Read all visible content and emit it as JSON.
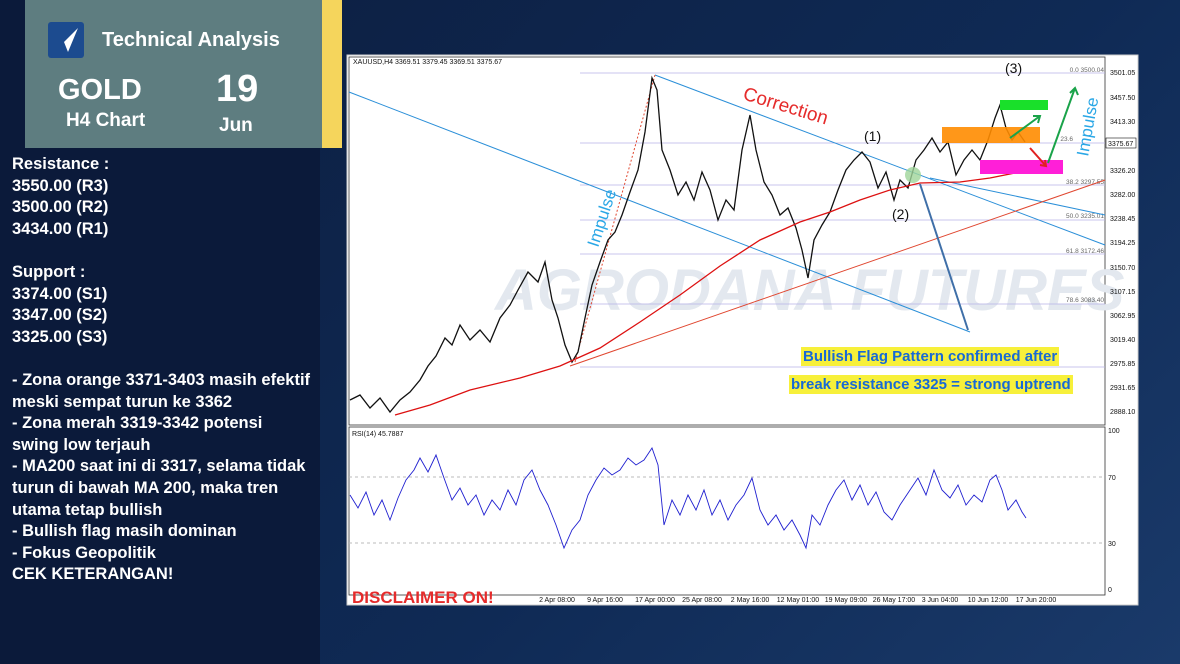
{
  "header": {
    "title": "Technical Analysis",
    "instrument": "GOLD",
    "timeframe": "H4 Chart",
    "day": "19",
    "month": "Jun"
  },
  "levels": {
    "resistance_title": "Resistance :",
    "resistance": [
      "3550.00 (R3)",
      "3500.00 (R2)",
      "3434.00 (R1)"
    ],
    "support_title": "Support :",
    "support": [
      "3374.00 (S1)",
      "3347.00 (S2)",
      "3325.00 (S3)"
    ]
  },
  "notes": [
    "- Zona orange 3371-3403 masih efektif meski sempat turun ke 3362",
    "- Zona merah 3319-3342 potensi swing low terjauh",
    "-  MA200 saat ini di 3317, selama tidak turun di bawah MA 200, maka tren utama tetap bullish",
    "- Bullish flag masih dominan",
    "- Fokus Geopolitik",
    "CEK KETERANGAN!"
  ],
  "chart": {
    "symbol_info": "XAUUSD,H4  3369.51 3379.45 3369.51 3375.67",
    "current_price": "3375.67",
    "price_axis": [
      "3501.05",
      "3457.50",
      "3413.30",
      "3326.20",
      "3282.00",
      "3238.45",
      "3194.25",
      "3150.70",
      "3107.15",
      "3062.95",
      "3019.40",
      "2975.85",
      "2931.65",
      "2888.10"
    ],
    "time_axis": [
      "2 Apr 08:00",
      "9 Apr 16:00",
      "17 Apr 00:00",
      "25 Apr 08:00",
      "2 May 16:00",
      "12 May 01:00",
      "19 May 09:00",
      "26 May 17:00",
      "3 Jun 04:00",
      "10 Jun 12:00",
      "17 Jun 20:00"
    ],
    "fib_labels": [
      "0.0  3500.04",
      "23.6",
      "38.2  3297.55",
      "50.0  3235.01",
      "61.8  3172.46",
      "78.6  3083.40"
    ],
    "annotations": {
      "correction": "Correction",
      "impulse_left": "Impulse",
      "impulse_right": "Impulse",
      "wave1": "(1)",
      "wave2": "(2)",
      "wave3": "(3)"
    },
    "flag_text": [
      "Bullish Flag Pattern confirmed after",
      "break resistance 3325 = strong uptrend"
    ],
    "watermark": "AGRODANA FUTURES",
    "disclaimer": "DISCLAIMER ON!",
    "rsi_label": "RSI(14) 45.7887",
    "rsi_axis": [
      "100",
      "70",
      "30",
      "0"
    ]
  }
}
